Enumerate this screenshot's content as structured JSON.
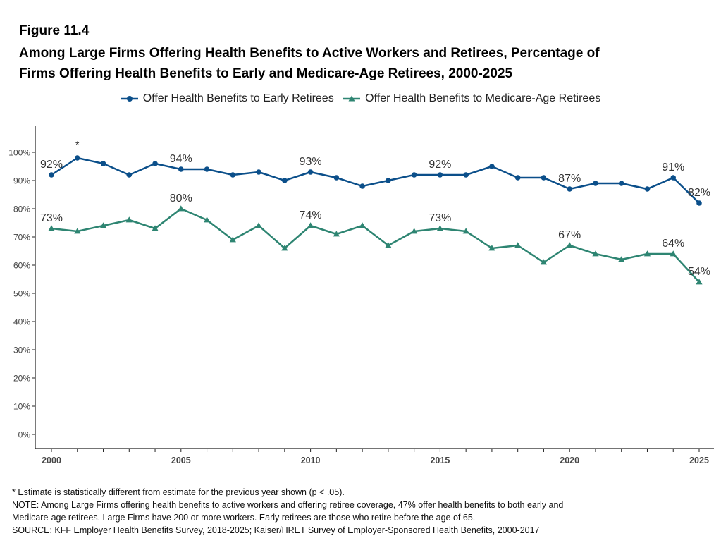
{
  "figure_label": "Figure 11.4",
  "title_line1": "Among Large Firms Offering Health Benefits to Active Workers and Retirees, Percentage of",
  "title_line2": "Firms Offering Health Benefits to Early and Medicare-Age Retirees, 2000-2025",
  "legend": {
    "early": "Offer Health Benefits to Early Retirees",
    "medicare": "Offer Health Benefits to Medicare-Age Retirees"
  },
  "colors": {
    "early": "#0b4f8a",
    "medicare": "#2e8572",
    "axis": "#222222",
    "tick_text": "#444444",
    "label_text": "#333333"
  },
  "notes": {
    "significance": "* Estimate is statistically different from estimate for the previous year shown (p < .05).",
    "note_line1": "NOTE: Among Large Firms offering health benefits to active workers and offering retiree coverage, 47% offer health benefits to both early and",
    "note_line2": "Medicare-age retirees. Large Firms have 200 or more workers. Early retirees are those who retire before the age of 65.",
    "source": "SOURCE: KFF Employer Health Benefits Survey, 2018-2025; Kaiser/HRET Survey of Employer-Sponsored Health Benefits, 2000-2017"
  },
  "chart_data": {
    "type": "line",
    "title": "Among Large Firms Offering Health Benefits to Active Workers and Retirees, Percentage of Firms Offering Health Benefits to Early and Medicare-Age Retirees, 2000-2025",
    "xlabel": "",
    "ylabel": "",
    "x": [
      2000,
      2001,
      2002,
      2003,
      2004,
      2005,
      2006,
      2007,
      2008,
      2009,
      2010,
      2011,
      2012,
      2013,
      2014,
      2015,
      2016,
      2017,
      2018,
      2019,
      2020,
      2021,
      2022,
      2023,
      2024,
      2025
    ],
    "xlim": [
      2000,
      2025
    ],
    "ylim": [
      0,
      100
    ],
    "x_tick_labels": [
      "2000",
      "2005",
      "2010",
      "2015",
      "2020",
      "2025"
    ],
    "x_tick_values": [
      2000,
      2005,
      2010,
      2015,
      2020,
      2025
    ],
    "y_tick_labels": [
      "0%",
      "10%",
      "20%",
      "30%",
      "40%",
      "50%",
      "60%",
      "70%",
      "80%",
      "90%",
      "100%"
    ],
    "y_tick_values": [
      0,
      10,
      20,
      30,
      40,
      50,
      60,
      70,
      80,
      90,
      100
    ],
    "grid": false,
    "legend_position": "top",
    "series": [
      {
        "name": "Offer Health Benefits to Early Retirees",
        "marker": "circle",
        "values": [
          92,
          98,
          96,
          92,
          96,
          94,
          94,
          92,
          93,
          90,
          93,
          91,
          88,
          90,
          92,
          92,
          92,
          95,
          91,
          91,
          87,
          89,
          89,
          87,
          91,
          82
        ]
      },
      {
        "name": "Offer Health Benefits to Medicare-Age Retirees",
        "marker": "triangle",
        "values": [
          73,
          72,
          74,
          76,
          73,
          80,
          76,
          69,
          74,
          66,
          74,
          71,
          74,
          67,
          72,
          73,
          72,
          66,
          67,
          61,
          67,
          64,
          62,
          64,
          64,
          54
        ]
      }
    ],
    "data_labels": [
      {
        "series": 0,
        "x": 2000,
        "text": "92%"
      },
      {
        "series": 0,
        "x": 2005,
        "text": "94%"
      },
      {
        "series": 0,
        "x": 2010,
        "text": "93%"
      },
      {
        "series": 0,
        "x": 2015,
        "text": "92%"
      },
      {
        "series": 0,
        "x": 2020,
        "text": "87%"
      },
      {
        "series": 0,
        "x": 2024,
        "text": "91%"
      },
      {
        "series": 0,
        "x": 2025,
        "text": "82%"
      },
      {
        "series": 1,
        "x": 2000,
        "text": "73%"
      },
      {
        "series": 1,
        "x": 2005,
        "text": "80%"
      },
      {
        "series": 1,
        "x": 2010,
        "text": "74%"
      },
      {
        "series": 1,
        "x": 2015,
        "text": "73%"
      },
      {
        "series": 1,
        "x": 2020,
        "text": "67%"
      },
      {
        "series": 1,
        "x": 2024,
        "text": "64%"
      },
      {
        "series": 1,
        "x": 2025,
        "text": "54%"
      }
    ],
    "annotations": [
      {
        "series": 0,
        "x": 2001,
        "text": "*"
      }
    ]
  }
}
